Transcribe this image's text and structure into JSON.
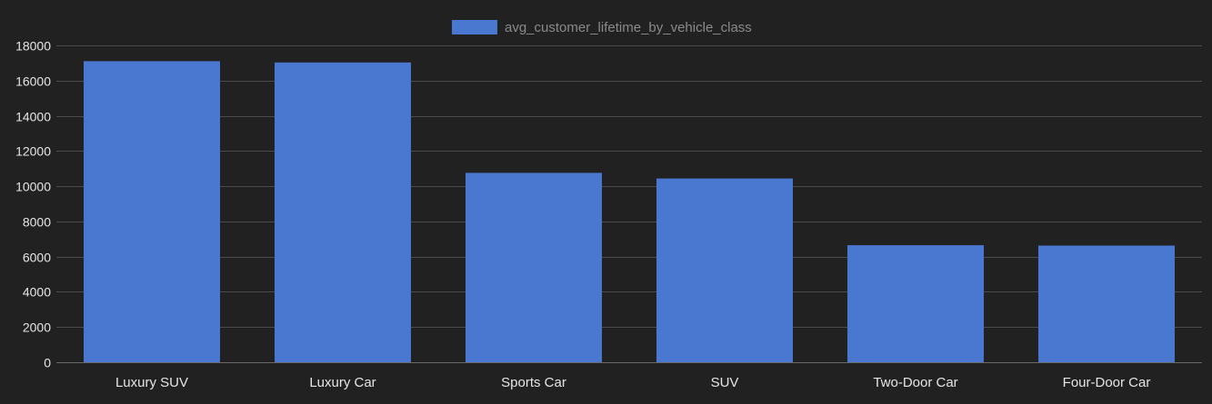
{
  "chart_data": {
    "type": "bar",
    "categories": [
      "Luxury SUV",
      "Luxury Car",
      "Sports Car",
      "SUV",
      "Two-Door Car",
      "Four-Door Car"
    ],
    "series": [
      {
        "name": "avg_customer_lifetime_by_vehicle_class",
        "color": "#4a78d1",
        "values": [
          17100,
          17030,
          10760,
          10440,
          6650,
          6630
        ]
      }
    ],
    "ylim": [
      0,
      18000
    ],
    "yticks": [
      0,
      2000,
      4000,
      6000,
      8000,
      10000,
      12000,
      14000,
      16000,
      18000
    ],
    "grid": true,
    "legend_position": "top-center"
  },
  "colors": {
    "background": "#212121",
    "grid": "#4a4a4a",
    "text": "#e6e6e6",
    "legend_text": "#8a8a8a"
  }
}
